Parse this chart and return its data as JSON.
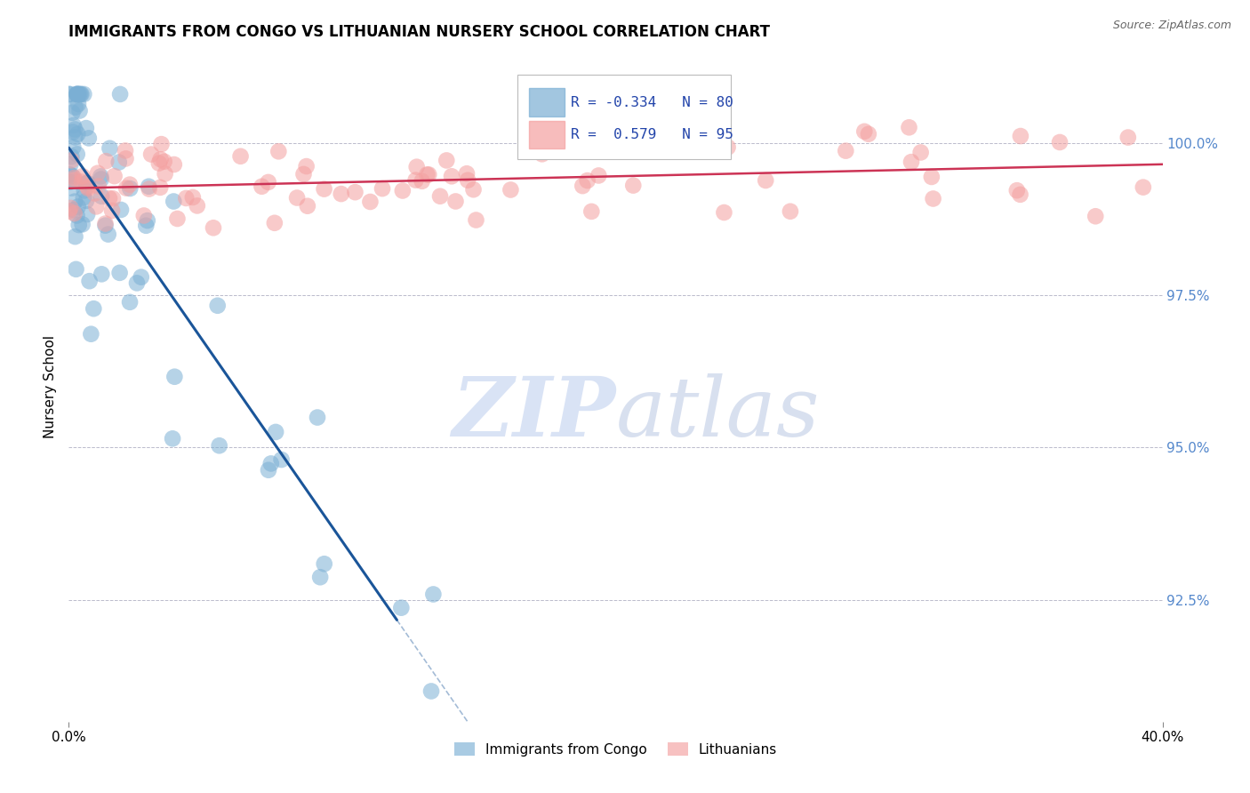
{
  "title": "IMMIGRANTS FROM CONGO VS LITHUANIAN NURSERY SCHOOL CORRELATION CHART",
  "source": "Source: ZipAtlas.com",
  "ylabel": "Nursery School",
  "ytick_values": [
    92.5,
    95.0,
    97.5,
    100.0
  ],
  "legend_labels": [
    "Immigrants from Congo",
    "Lithuanians"
  ],
  "legend_r_blue": "R = -0.334",
  "legend_n_blue": "N = 80",
  "legend_r_pink": "R =  0.579",
  "legend_n_pink": "N = 95",
  "blue_color": "#7BAFD4",
  "pink_color": "#F4A0A0",
  "blue_line_color": "#1A5599",
  "pink_line_color": "#CC3355",
  "watermark_zip": "ZIP",
  "watermark_atlas": "atlas",
  "xlim": [
    0.0,
    40.0
  ],
  "ylim": [
    90.5,
    101.5
  ],
  "blue_seed": 7,
  "pink_seed": 99
}
